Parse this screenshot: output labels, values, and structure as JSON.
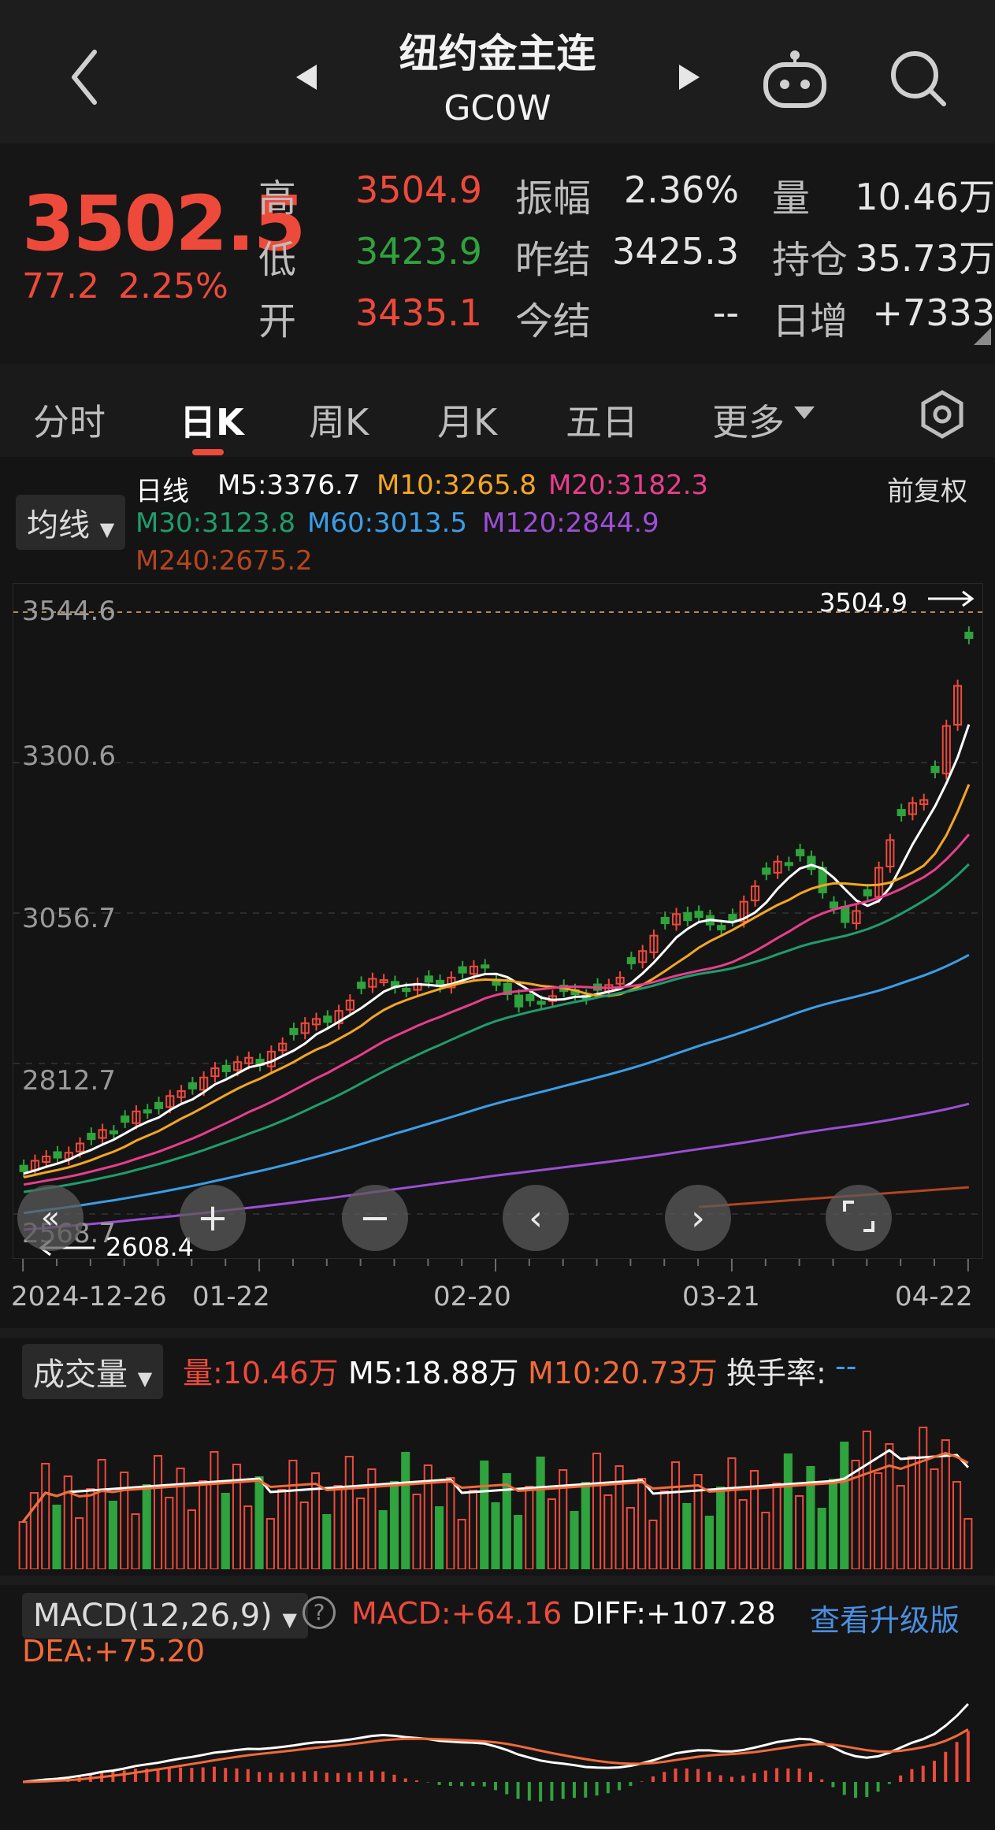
{
  "nav": {
    "title": "纽约金主连",
    "code": "GC0W"
  },
  "quote": {
    "price": "3502.5",
    "change": "77.2",
    "change_pct": "2.25%",
    "high_label": "高",
    "high": "3504.9",
    "low_label": "低",
    "low": "3423.9",
    "open_label": "开",
    "open": "3435.1",
    "amp_label": "振幅",
    "amp": "2.36%",
    "prev_settle_label": "昨结",
    "prev_settle": "3425.3",
    "settle_label": "今结",
    "settle": "--",
    "vol_label": "量",
    "vol": "10.46万",
    "oi_label": "持仓",
    "oi": "35.73万",
    "day_inc_label": "日增",
    "day_inc": "+7333"
  },
  "tabs": [
    "分时",
    "日K",
    "周K",
    "月K",
    "五日",
    "更多"
  ],
  "ma": {
    "selector": "均线",
    "period_label": "日线",
    "adjust": "前复权",
    "m5": "M5:3376.7",
    "m10": "M10:3265.8",
    "m20": "M20:3182.3",
    "m30": "M30:3123.8",
    "m60": "M60:3013.5",
    "m120": "M120:2844.9",
    "m240": "M240:2675.2"
  },
  "colors": {
    "up": "#ee4a3b",
    "down": "#2fa33d",
    "m5": "#ffffff",
    "m10": "#f5a623",
    "m20": "#e83e8c",
    "m30": "#1f9d6c",
    "m60": "#3a9ee8",
    "m120": "#9b4fd6",
    "m240": "#b3461f",
    "link": "#4a8fe0"
  },
  "chart_axis": {
    "y_ticks": [
      "3544.6",
      "3300.6",
      "3056.7",
      "2812.7",
      "2568.7"
    ],
    "x_ticks": [
      "2024-12-26",
      "01-22",
      "02-20",
      "03-21",
      "04-22"
    ],
    "max_label": "3504.9",
    "min_label": "2608.4"
  },
  "volume": {
    "selector": "成交量",
    "vol": "量:10.46万",
    "m5": "M5:18.88万",
    "m10": "M10:20.73万",
    "turnover": "换手率:",
    "turnover_val": "--"
  },
  "macd": {
    "selector": "MACD(12,26,9)",
    "macd": "MACD:+64.16",
    "diff": "DIFF:+107.28",
    "dea": "DEA:+75.20",
    "upgrade": "查看升级版"
  },
  "chart_data": {
    "type": "candlestick",
    "x_range": [
      "2024-12-26",
      "04-22"
    ],
    "ylim": [
      2568.7,
      3544.6
    ],
    "close": [
      2638,
      2655,
      2662,
      2660,
      2668,
      2683,
      2690,
      2705,
      2700,
      2718,
      2735,
      2733,
      2740,
      2760,
      2768,
      2772,
      2790,
      2805,
      2800,
      2815,
      2822,
      2810,
      2832,
      2845,
      2860,
      2878,
      2885,
      2880,
      2898,
      2915,
      2935,
      2950,
      2948,
      2936,
      2930,
      2942,
      2945,
      2938,
      2952,
      2960,
      2970,
      2968,
      2940,
      2925,
      2905,
      2915,
      2912,
      2922,
      2930,
      2925,
      2918,
      2932,
      2940,
      2952,
      2975,
      2995,
      3020,
      3040,
      3055,
      3045,
      3050,
      3038,
      3030,
      3045,
      3075,
      3100,
      3120,
      3140,
      3135,
      3150,
      3128,
      3090,
      3065,
      3042,
      3060,
      3085,
      3130,
      3175,
      3215,
      3235,
      3240,
      3285,
      3360,
      3425,
      3502.5
    ]
  }
}
